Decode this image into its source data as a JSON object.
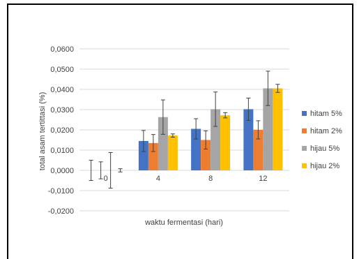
{
  "chart_data": {
    "type": "bar",
    "xlabel": "waktu fermentasi (hari)",
    "ylabel": "total asam tertittasi (%)",
    "categories": [
      "0",
      "4",
      "8",
      "12"
    ],
    "ylim": [
      -0.02,
      0.06
    ],
    "yticks": [
      -0.02,
      -0.01,
      0.0,
      0.01,
      0.02,
      0.03,
      0.04,
      0.05,
      0.06
    ],
    "ytick_labels": [
      "-0,0200",
      "-0,0100",
      "0,0000",
      "0,0100",
      "0,0200",
      "0,0300",
      "0,0400",
      "0,0500",
      "0,0600"
    ],
    "grid": true,
    "legend_position": "right",
    "series": [
      {
        "name": "hitam 5%",
        "color": "#4472C4",
        "values": [
          0.0,
          0.0145,
          0.0205,
          0.0302
        ],
        "errors": [
          0.005,
          0.0052,
          0.005,
          0.0055
        ]
      },
      {
        "name": "hitam 2%",
        "color": "#ED7D31",
        "values": [
          0.0,
          0.0135,
          0.015,
          0.02
        ],
        "errors": [
          0.0042,
          0.0042,
          0.0045,
          0.0045
        ]
      },
      {
        "name": "hijau 5%",
        "color": "#A5A5A5",
        "values": [
          0.0,
          0.0263,
          0.0302,
          0.0405
        ],
        "errors": [
          0.0088,
          0.0085,
          0.0085,
          0.0085
        ]
      },
      {
        "name": "hijau 2%",
        "color": "#FFC000",
        "values": [
          0.0,
          0.0172,
          0.0272,
          0.0405
        ],
        "errors": [
          0.0008,
          0.0008,
          0.0013,
          0.002
        ]
      }
    ]
  }
}
